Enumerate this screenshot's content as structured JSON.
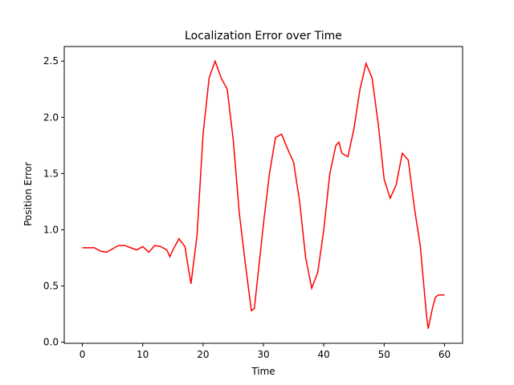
{
  "chart_data": {
    "type": "line",
    "title": "Localization Error over Time",
    "x_label": "Time",
    "y_label": "Position Error",
    "x": [
      0,
      1,
      2,
      3,
      4,
      5,
      6,
      7,
      8,
      9,
      10,
      11,
      12,
      13,
      14,
      14.5,
      15,
      16,
      17,
      17.5,
      18,
      19,
      20,
      21,
      22,
      23,
      24,
      25,
      26,
      27,
      28,
      28.5,
      29,
      30,
      31,
      32,
      33,
      34,
      35,
      36,
      37,
      38,
      39,
      40,
      41,
      42,
      42.5,
      43,
      44,
      45,
      46,
      47,
      48,
      49,
      50,
      51,
      52,
      53,
      54,
      55,
      56,
      57,
      57.3,
      58,
      58.5,
      59,
      60
    ],
    "series": [
      {
        "name": "Position Error",
        "color": "#ff0000",
        "values": [
          0.84,
          0.84,
          0.84,
          0.81,
          0.8,
          0.83,
          0.86,
          0.86,
          0.84,
          0.82,
          0.85,
          0.8,
          0.86,
          0.85,
          0.82,
          0.76,
          0.82,
          0.92,
          0.85,
          0.68,
          0.52,
          0.95,
          1.85,
          2.35,
          2.5,
          2.35,
          2.25,
          1.8,
          1.15,
          0.7,
          0.28,
          0.3,
          0.55,
          1.05,
          1.5,
          1.82,
          1.85,
          1.72,
          1.6,
          1.25,
          0.75,
          0.48,
          0.62,
          1.0,
          1.5,
          1.75,
          1.78,
          1.68,
          1.65,
          1.9,
          2.25,
          2.48,
          2.35,
          1.95,
          1.45,
          1.28,
          1.4,
          1.68,
          1.62,
          1.2,
          0.85,
          0.25,
          0.12,
          0.3,
          0.4,
          0.42,
          0.42
        ]
      }
    ],
    "xlim": [
      -3,
      63
    ],
    "ylim": [
      -0.01,
      2.63
    ],
    "xticks": [
      0,
      10,
      20,
      30,
      40,
      50,
      60
    ],
    "yticks": [
      {
        "value": 0,
        "label": "0.0"
      },
      0.5,
      {
        "value": 1,
        "label": "1.0"
      },
      1.5,
      {
        "value": 2,
        "label": "2.0"
      },
      2.5
    ],
    "grid": false
  }
}
